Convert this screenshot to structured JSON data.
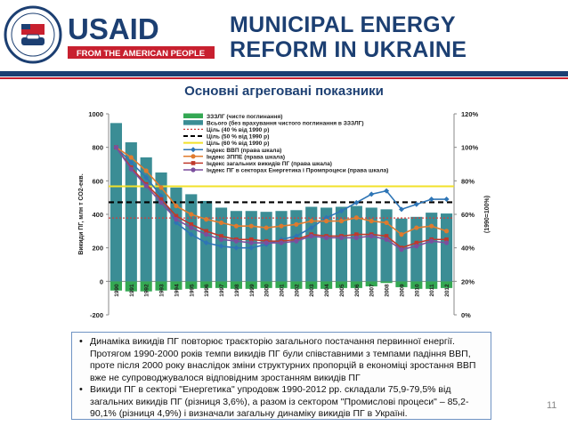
{
  "header": {
    "logo_word": "USAID",
    "logo_tagline": "FROM THE AMERICAN PEOPLE",
    "seal_text": "UNITED STATES AGENCY FOR INTERNATIONAL DEVELOPMENT",
    "program_line1": "MUNICIPAL ENERGY",
    "program_line2": "REFORM IN UKRAINE"
  },
  "page": {
    "title": "Основні агреговані показники",
    "page_number": "11"
  },
  "colors": {
    "brand_blue": "#1c3f72",
    "brand_red": "#c8202f",
    "bar_net": "#3b8d95",
    "bar_absorb": "#34a853",
    "gdp": "#2e75b6",
    "tpes": "#e07b2e",
    "total": "#c0392b",
    "energy": "#7b4f9e"
  },
  "chart_data": {
    "type": "bar",
    "title": "",
    "ylabel": "Викиди ПГ, млн т СО2-екв.",
    "ylabel_right": "(1990=100%)",
    "ylim": [
      -200,
      1000
    ],
    "ylim_right": [
      0,
      120
    ],
    "yticks": [
      "-200",
      "0",
      "200",
      "400",
      "600",
      "800",
      "1000"
    ],
    "yticks_right": [
      "0%",
      "20%",
      "40%",
      "60%",
      "80%",
      "100%",
      "120%"
    ],
    "grid": false,
    "legend_position": "top-center",
    "categories": [
      "1990",
      "1991",
      "1992",
      "1993",
      "1994",
      "1995",
      "1996",
      "1997",
      "1998",
      "1999",
      "2000",
      "2001",
      "2002",
      "2003",
      "2004",
      "2005",
      "2006",
      "2007",
      "2008",
      "2009",
      "2010",
      "2011",
      "2012"
    ],
    "series": [
      {
        "name": "ЗЗЗЛГ (чисте поглинання)",
        "kind": "bar",
        "axis": "left",
        "color": "#34a853",
        "values": [
          -55,
          -60,
          -60,
          -55,
          -50,
          -45,
          -40,
          -40,
          -45,
          -45,
          -40,
          -40,
          -45,
          -45,
          -45,
          -40,
          -40,
          -30,
          -10,
          -35,
          -45,
          -45,
          -40
        ]
      },
      {
        "name": "Всього (без врахування чистого поглинання в ЗЗЗЛГ)",
        "kind": "bar",
        "axis": "left",
        "color": "#3b8d95",
        "values": [
          945,
          830,
          740,
          650,
          560,
          520,
          480,
          440,
          420,
          420,
          415,
          420,
          425,
          445,
          440,
          445,
          450,
          440,
          430,
          375,
          385,
          410,
          405
        ]
      },
      {
        "name": "Ціль (40 % від 1990 р)",
        "kind": "hline",
        "axis": "left",
        "color": "#d04040",
        "value": 378
      },
      {
        "name": "Ціль (50 % від 1990 р)",
        "kind": "hline",
        "axis": "left",
        "color": "#000000",
        "value": 472
      },
      {
        "name": "Ціль (60 % від 1990 р)",
        "kind": "hline",
        "axis": "left",
        "color": "#f2e12a",
        "value": 567
      },
      {
        "name": "Індекс ВВП (права шкала)",
        "kind": "line",
        "axis": "right",
        "color": "#2e75b6",
        "marker": "diamond",
        "values": [
          100,
          91,
          82,
          71,
          55,
          48,
          43,
          41,
          40,
          40,
          42,
          45,
          47,
          52,
          58,
          62,
          67,
          72,
          74,
          63,
          66,
          69,
          69
        ]
      },
      {
        "name": "Індекс ЗППЕ (права шкала)",
        "kind": "line",
        "axis": "right",
        "color": "#e07b2e",
        "marker": "circle",
        "values": [
          100,
          94,
          86,
          76,
          65,
          60,
          57,
          55,
          53,
          53,
          52,
          53,
          54,
          56,
          56,
          56,
          58,
          56,
          55,
          48,
          52,
          53,
          50
        ]
      },
      {
        "name": "Індекс загальних викидів ПГ (права шкала)",
        "kind": "line",
        "axis": "right",
        "color": "#c0392b",
        "marker": "square",
        "values": [
          100,
          88,
          78,
          69,
          59,
          54,
          50,
          47,
          45,
          45,
          44,
          44,
          45,
          48,
          47,
          47,
          48,
          48,
          47,
          40,
          43,
          45,
          45
        ]
      },
      {
        "name": "Індекс ПГ в секторах Енергетика і Промпроцеси (права шкала)",
        "kind": "line",
        "axis": "right",
        "color": "#7b4f9e",
        "marker": "circle",
        "values": [
          100,
          87,
          77,
          67,
          57,
          52,
          48,
          45,
          44,
          43,
          43,
          43,
          44,
          47,
          46,
          46,
          46,
          47,
          45,
          39,
          41,
          44,
          43
        ]
      }
    ]
  },
  "notes": {
    "items": [
      "Динаміка викидів ПГ повторює траєкторію загального постачання первинної енергії. Протягом 1990-2000 років темпи викидів ПГ були співставними з темпами падіння ВВП, проте після 2000 року внаслідок зміни структурних пропорцій в економіці зростання ВВП вже не супроводжувалося відповідним зростанням викидів ПГ",
      "Викиди ПГ в секторі \"Енергетика\" упродовж 1990-2012 рр. складали 75,9-79,5% від загальних викидів ПГ (різниця 3,6%), а разом із сектором \"Промислові процеси\" – 85,2-90,1% (різниця 4,9%) і визначали загальну динаміку викидів ПГ в Україні."
    ]
  }
}
